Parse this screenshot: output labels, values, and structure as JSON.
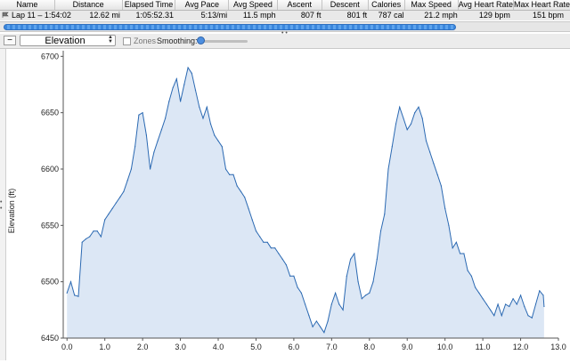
{
  "lap_table": {
    "headers": [
      "Name",
      "Distance",
      "Elapsed Time",
      "Avg Pace",
      "Avg Speed",
      "Ascent",
      "Descent",
      "Calories",
      "Max Speed",
      "Avg Heart Rate",
      "Max Heart Rate"
    ],
    "row": [
      "Lap 11 – 1:54:02",
      "12.62 mi",
      "1:05:52.31",
      "5:13/mi",
      "11.5 mph",
      "807 ft",
      "801 ft",
      "787 cal",
      "21.2 mph",
      "129 bpm",
      "151 bpm"
    ]
  },
  "toolbar": {
    "collapse_label": "−",
    "metric_select": "Elevation",
    "zones_label": "Zones",
    "smoothing_label": "Smoothing:",
    "smoothing_level": 0
  },
  "colors": {
    "fill": "#dce7f5",
    "line": "#2b69b2",
    "scroll_thumb": "#4a93e6"
  },
  "chart_data": {
    "type": "area",
    "ylabel": "Elevation (ft)",
    "xlabel": "",
    "xlim": [
      -0.1,
      13.0
    ],
    "ylim": [
      6450,
      6705
    ],
    "x_ticks": [
      "0.0",
      "1.0",
      "2.0",
      "3.0",
      "4.0",
      "5.0",
      "6.0",
      "7.0",
      "8.0",
      "9.0",
      "10.0",
      "11.0",
      "12.0",
      "13.0"
    ],
    "y_ticks": [
      "6450",
      "6500",
      "6550",
      "6600",
      "6650",
      "6700"
    ],
    "grid": false,
    "x": [
      0.0,
      0.1,
      0.2,
      0.3,
      0.4,
      0.5,
      0.6,
      0.7,
      0.8,
      0.9,
      1.0,
      1.1,
      1.2,
      1.3,
      1.4,
      1.5,
      1.6,
      1.7,
      1.8,
      1.9,
      2.0,
      2.1,
      2.2,
      2.3,
      2.4,
      2.5,
      2.6,
      2.7,
      2.8,
      2.9,
      3.0,
      3.1,
      3.2,
      3.3,
      3.4,
      3.5,
      3.6,
      3.7,
      3.8,
      3.9,
      4.0,
      4.1,
      4.2,
      4.3,
      4.4,
      4.5,
      4.6,
      4.7,
      4.8,
      4.9,
      5.0,
      5.1,
      5.2,
      5.3,
      5.4,
      5.5,
      5.6,
      5.7,
      5.8,
      5.9,
      6.0,
      6.1,
      6.2,
      6.3,
      6.4,
      6.5,
      6.6,
      6.7,
      6.8,
      6.9,
      7.0,
      7.1,
      7.2,
      7.3,
      7.4,
      7.5,
      7.6,
      7.7,
      7.8,
      7.9,
      8.0,
      8.1,
      8.2,
      8.3,
      8.4,
      8.5,
      8.6,
      8.7,
      8.8,
      8.9,
      9.0,
      9.1,
      9.2,
      9.3,
      9.4,
      9.5,
      9.6,
      9.7,
      9.8,
      9.9,
      10.0,
      10.1,
      10.2,
      10.3,
      10.4,
      10.5,
      10.6,
      10.7,
      10.8,
      10.9,
      11.0,
      11.1,
      11.2,
      11.3,
      11.4,
      11.5,
      11.6,
      11.7,
      11.8,
      11.9,
      12.0,
      12.1,
      12.2,
      12.3,
      12.4,
      12.5,
      12.6,
      12.62
    ],
    "values": [
      6490,
      6500,
      6488,
      6487,
      6535,
      6538,
      6540,
      6545,
      6545,
      6540,
      6555,
      6560,
      6565,
      6570,
      6575,
      6580,
      6590,
      6600,
      6620,
      6648,
      6650,
      6630,
      6600,
      6615,
      6625,
      6635,
      6645,
      6660,
      6672,
      6680,
      6660,
      6675,
      6690,
      6685,
      6670,
      6655,
      6645,
      6655,
      6640,
      6630,
      6625,
      6620,
      6600,
      6595,
      6595,
      6585,
      6580,
      6575,
      6565,
      6555,
      6545,
      6540,
      6535,
      6535,
      6530,
      6530,
      6525,
      6520,
      6515,
      6505,
      6505,
      6495,
      6490,
      6480,
      6470,
      6460,
      6465,
      6460,
      6455,
      6465,
      6480,
      6490,
      6480,
      6475,
      6505,
      6520,
      6525,
      6500,
      6485,
      6488,
      6490,
      6500,
      6520,
      6545,
      6560,
      6600,
      6620,
      6640,
      6655,
      6645,
      6635,
      6640,
      6650,
      6655,
      6645,
      6625,
      6615,
      6605,
      6595,
      6585,
      6565,
      6550,
      6530,
      6535,
      6525,
      6525,
      6510,
      6505,
      6495,
      6490,
      6485,
      6480,
      6475,
      6470,
      6480,
      6470,
      6480,
      6478,
      6485,
      6480,
      6488,
      6478,
      6470,
      6468,
      6480,
      6492,
      6488,
      6478
    ]
  }
}
